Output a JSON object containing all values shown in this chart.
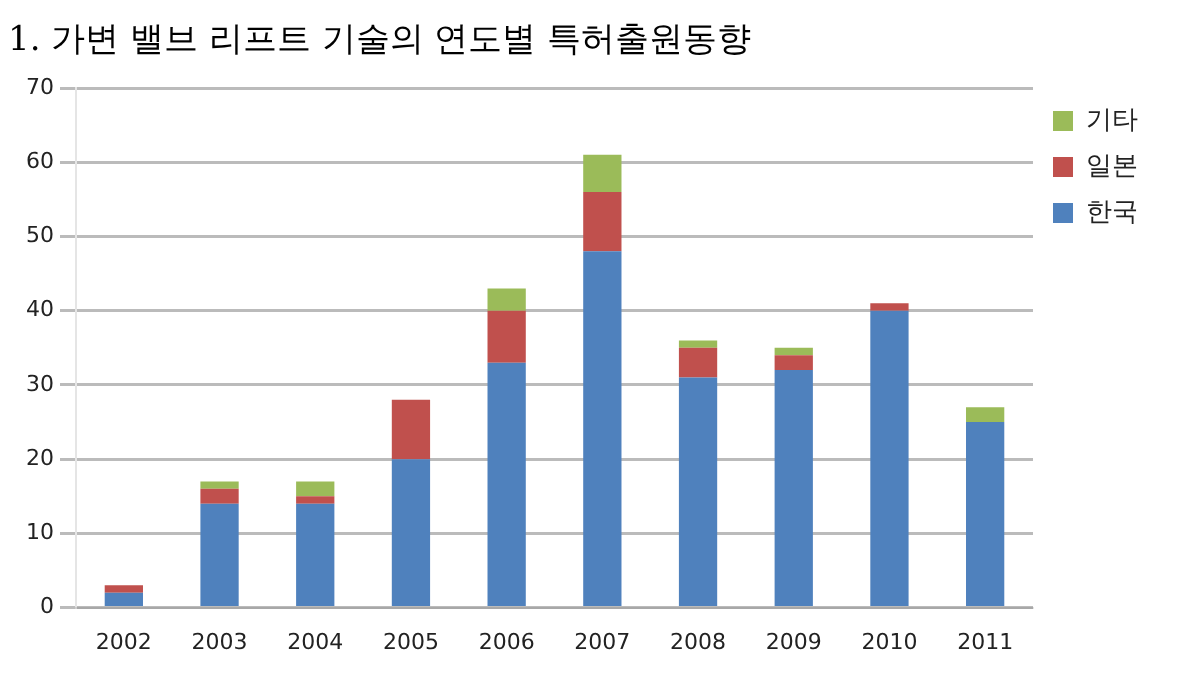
{
  "chart_data": {
    "type": "bar",
    "title": "1. 가변 밸브 리프트 기술의 연도별 특허출원동향",
    "stacked": true,
    "categories": [
      "2002",
      "2003",
      "2004",
      "2005",
      "2006",
      "2007",
      "2008",
      "2009",
      "2010",
      "2011"
    ],
    "series": [
      {
        "name": "한국",
        "color": "#4f81bd",
        "values": [
          2,
          14,
          14,
          20,
          33,
          48,
          31,
          32,
          40,
          25
        ]
      },
      {
        "name": "일본",
        "color": "#c0504d",
        "values": [
          1,
          2,
          1,
          8,
          7,
          8,
          4,
          2,
          1,
          0
        ]
      },
      {
        "name": "기타",
        "color": "#9bbb59",
        "values": [
          0,
          1,
          2,
          0,
          3,
          5,
          1,
          1,
          0,
          2
        ]
      }
    ],
    "ylim": [
      0,
      70
    ],
    "yticks": [
      0,
      10,
      20,
      30,
      40,
      50,
      60,
      70
    ],
    "grid": "y",
    "legend": "top right"
  }
}
